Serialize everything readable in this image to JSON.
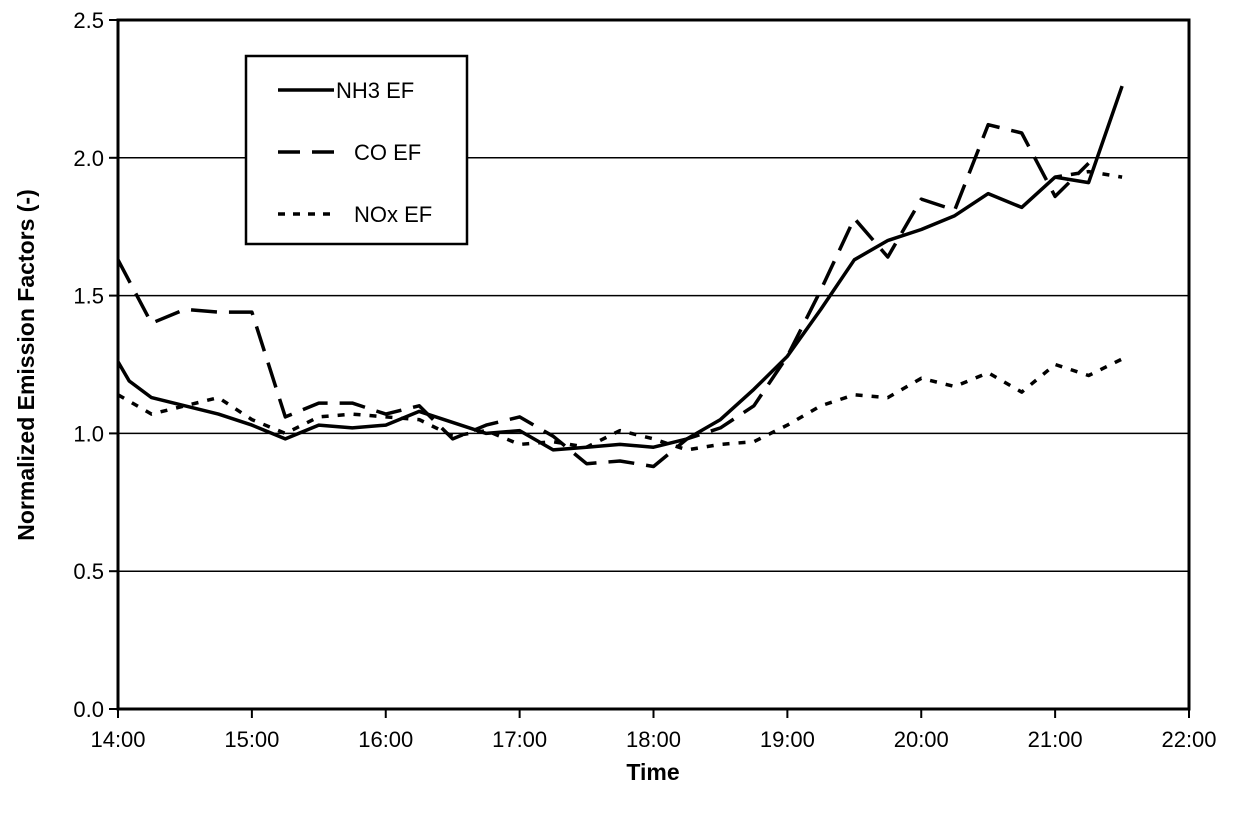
{
  "chart_data": {
    "type": "line",
    "title": "",
    "xlabel": "Time",
    "ylabel": "Normalized Emission Factors (-)",
    "x_tick_labels": [
      "14:00",
      "15:00",
      "16:00",
      "17:00",
      "18:00",
      "19:00",
      "20:00",
      "21:00",
      "22:00"
    ],
    "y_tick_labels": [
      "0.0",
      "0.5",
      "1.0",
      "1.5",
      "2.0",
      "2.5"
    ],
    "xlim": [
      "14:00",
      "22:00"
    ],
    "ylim": [
      0.0,
      2.5
    ],
    "y_ticks": [
      0.0,
      0.5,
      1.0,
      1.5,
      2.0,
      2.5
    ],
    "grid": "horizontal",
    "legend_position": "top-left",
    "series": [
      {
        "name": "NH3 EF",
        "style": "solid",
        "color": "#000000",
        "x": [
          "14:00",
          "14:05",
          "14:15",
          "14:30",
          "14:45",
          "15:00",
          "15:15",
          "15:30",
          "15:45",
          "16:00",
          "16:15",
          "16:30",
          "16:45",
          "17:00",
          "17:15",
          "17:30",
          "17:45",
          "18:00",
          "18:15",
          "18:30",
          "18:45",
          "19:00",
          "19:15",
          "19:30",
          "19:45",
          "20:00",
          "20:15",
          "20:30",
          "20:45",
          "21:00",
          "21:15",
          "21:30"
        ],
        "values": [
          1.26,
          1.19,
          1.13,
          1.1,
          1.07,
          1.03,
          0.98,
          1.03,
          1.02,
          1.03,
          1.08,
          1.04,
          1.0,
          1.01,
          0.94,
          0.95,
          0.96,
          0.95,
          0.98,
          1.05,
          1.16,
          1.28,
          1.45,
          1.63,
          1.7,
          1.74,
          1.79,
          1.87,
          1.82,
          1.93,
          1.91,
          2.26
        ]
      },
      {
        "name": "CO EF",
        "style": "dashed",
        "color": "#000000",
        "x": [
          "14:00",
          "14:15",
          "14:30",
          "14:45",
          "15:00",
          "15:15",
          "15:30",
          "15:45",
          "16:00",
          "16:15",
          "16:30",
          "16:45",
          "17:00",
          "17:15",
          "17:30",
          "17:45",
          "18:00",
          "18:15",
          "18:30",
          "18:45",
          "19:00",
          "19:15",
          "19:30",
          "19:45",
          "20:00",
          "20:15",
          "20:30",
          "20:45",
          "21:00",
          "21:15"
        ],
        "values": [
          1.63,
          1.4,
          1.45,
          1.44,
          1.44,
          1.06,
          1.11,
          1.11,
          1.07,
          1.1,
          0.98,
          1.03,
          1.06,
          0.99,
          0.89,
          0.9,
          0.88,
          0.98,
          1.02,
          1.1,
          1.28,
          1.52,
          1.78,
          1.64,
          1.85,
          1.81,
          2.12,
          2.09,
          1.86,
          1.98
        ]
      },
      {
        "name": "NOx EF",
        "style": "dotted",
        "color": "#000000",
        "x": [
          "14:00",
          "14:15",
          "14:30",
          "14:45",
          "15:00",
          "15:15",
          "15:30",
          "15:45",
          "16:00",
          "16:15",
          "16:30",
          "16:45",
          "17:00",
          "17:15",
          "17:30",
          "17:45",
          "18:00",
          "18:15",
          "18:30",
          "18:45",
          "19:00",
          "19:15",
          "19:30",
          "19:45",
          "20:00",
          "20:15",
          "20:30",
          "20:45",
          "21:00",
          "21:15",
          "21:30"
        ],
        "values": [
          1.14,
          1.07,
          1.1,
          1.13,
          1.05,
          1.0,
          1.06,
          1.07,
          1.06,
          1.05,
          0.99,
          1.01,
          0.96,
          0.97,
          0.95,
          1.01,
          0.98,
          0.94,
          0.96,
          0.97,
          1.03,
          1.1,
          1.14,
          1.13,
          1.2,
          1.17,
          1.22,
          1.15,
          1.25,
          1.21,
          1.27
        ]
      },
      {
        "name": "",
        "style": "dotted",
        "color": "#000000",
        "x": [
          "21:00",
          "21:15",
          "21:30"
        ],
        "values": [
          1.93,
          1.95,
          1.93
        ]
      }
    ]
  }
}
